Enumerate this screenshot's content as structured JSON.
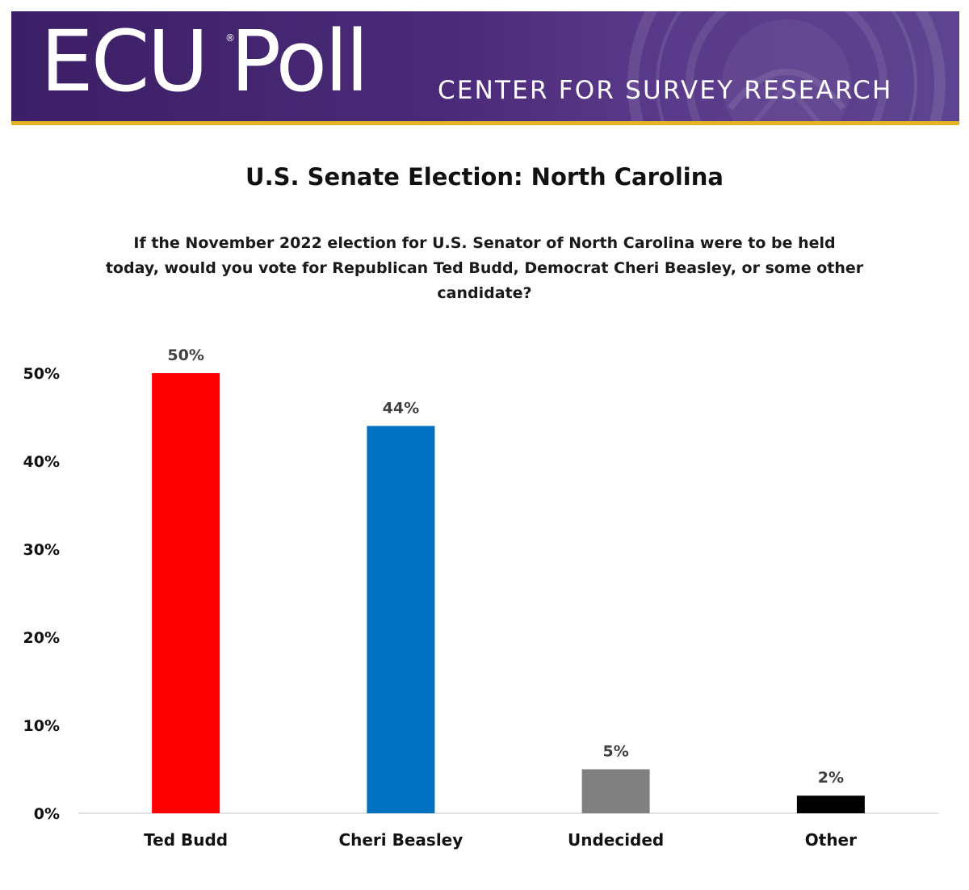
{
  "header": {
    "logo_text": "ECU Poll",
    "logo_registered": "®",
    "tagline": "CENTER FOR SURVEY RESEARCH",
    "colors": {
      "purple": "#4a2a78",
      "gold": "#e6b325"
    }
  },
  "chart_data": {
    "type": "bar",
    "title": "U.S. Senate Election: North Carolina",
    "subtitle": "If the November 2022 election for U.S. Senator of North Carolina were to be held today, would you vote for Republican Ted Budd, Democrat Cheri Beasley, or some other candidate?",
    "categories": [
      "Ted Budd",
      "Cheri Beasley",
      "Undecided",
      "Other"
    ],
    "values": [
      50,
      44,
      5,
      2
    ],
    "data_labels": [
      "50%",
      "44%",
      "5%",
      "2%"
    ],
    "colors": [
      "#ff0000",
      "#0070c0",
      "#808080",
      "#000000"
    ],
    "ylim": [
      0,
      50
    ],
    "yticks": [
      0,
      10,
      20,
      30,
      40,
      50
    ],
    "ytick_labels": [
      "0%",
      "10%",
      "20%",
      "30%",
      "40%",
      "50%"
    ],
    "xlabel": "",
    "ylabel": "",
    "grid": false,
    "legend": "none"
  }
}
